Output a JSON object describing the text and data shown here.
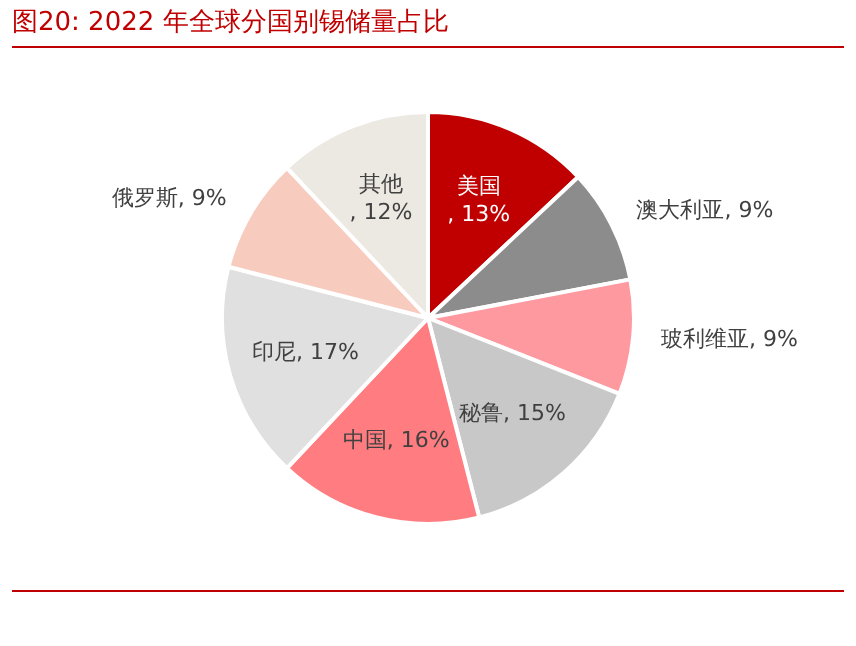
{
  "chart_data": {
    "type": "pie",
    "title": "图20:  2022 年全球分国别锡储量占比",
    "categories": [
      "美国",
      "澳大利亚",
      "玻利维亚",
      "秘鲁",
      "中国",
      "印尼",
      "俄罗斯",
      "其他"
    ],
    "values": [
      13,
      9,
      9,
      15,
      16,
      17,
      9,
      12
    ],
    "colors": [
      "#c00000",
      "#8c8c8c",
      "#ff99a0",
      "#c8c8c8",
      "#ff7c80",
      "#e0e0e0",
      "#f8cbbf",
      "#ece8e2"
    ],
    "value_labels": [
      ", 13%",
      ", 9%",
      ", 9%",
      ", 15%",
      ", 16%",
      ", 17%",
      ", 9%",
      ", 12%"
    ],
    "legend": false
  }
}
